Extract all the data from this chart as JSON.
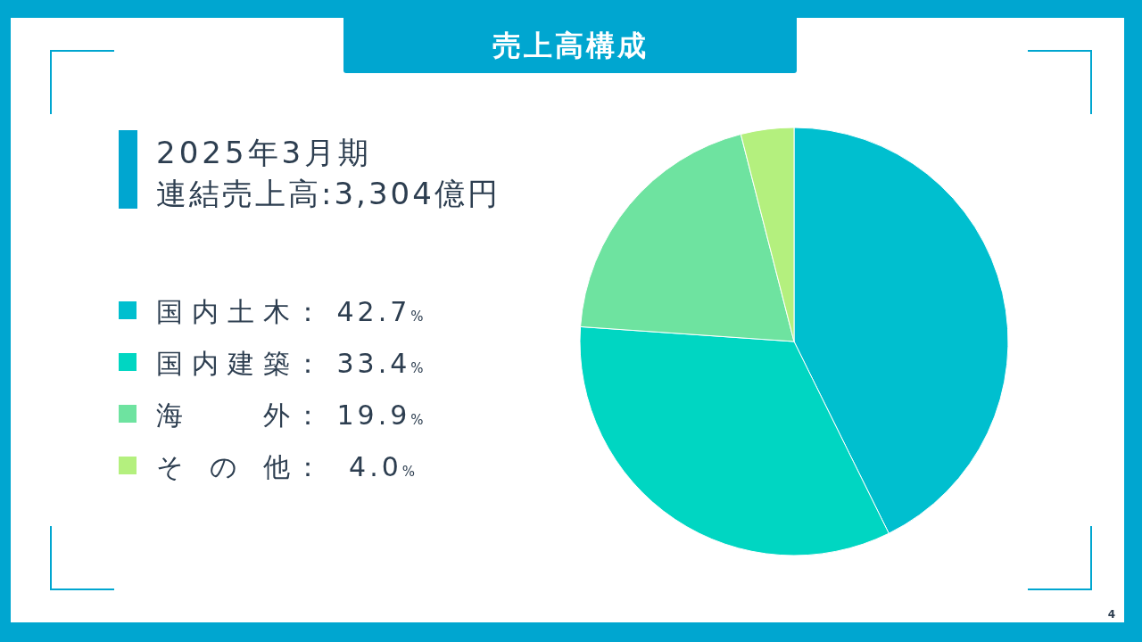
{
  "chart_data": {
    "type": "pie",
    "title": "売上高構成",
    "subtitle": "2025年3月期",
    "annotations": [
      "連結売上高:3,304億円",
      "4"
    ],
    "categories": [
      "国内土木",
      "国内建築",
      "海外",
      "その他"
    ],
    "values": [
      42.7,
      33.4,
      19.9,
      4.0
    ],
    "colors": [
      "#00bfcf",
      "#00d6c2",
      "#6ee3a0",
      "#b4f07e"
    ],
    "value_labels": [
      "： 42.7%",
      "： 33.4%",
      "： 19.9%",
      "：  4.0%"
    ],
    "legend": "left"
  }
}
